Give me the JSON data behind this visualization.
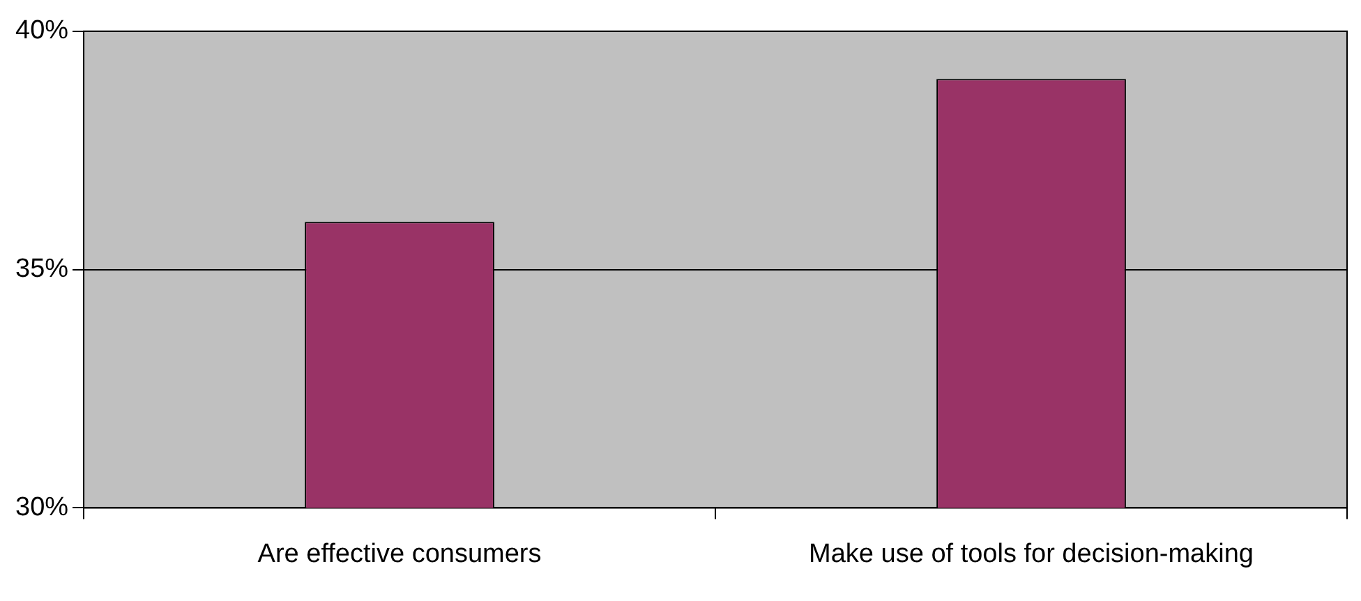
{
  "chart_data": {
    "type": "bar",
    "categories": [
      "Are effective consumers",
      "Make use of tools for decision-making"
    ],
    "values": [
      36,
      39
    ],
    "color": "#993366",
    "ylim": [
      30,
      40
    ],
    "yticks": [
      {
        "value": 30,
        "label": "30%"
      },
      {
        "value": 35,
        "label": "35%"
      },
      {
        "value": 40,
        "label": "40%"
      }
    ],
    "grid": "y"
  }
}
